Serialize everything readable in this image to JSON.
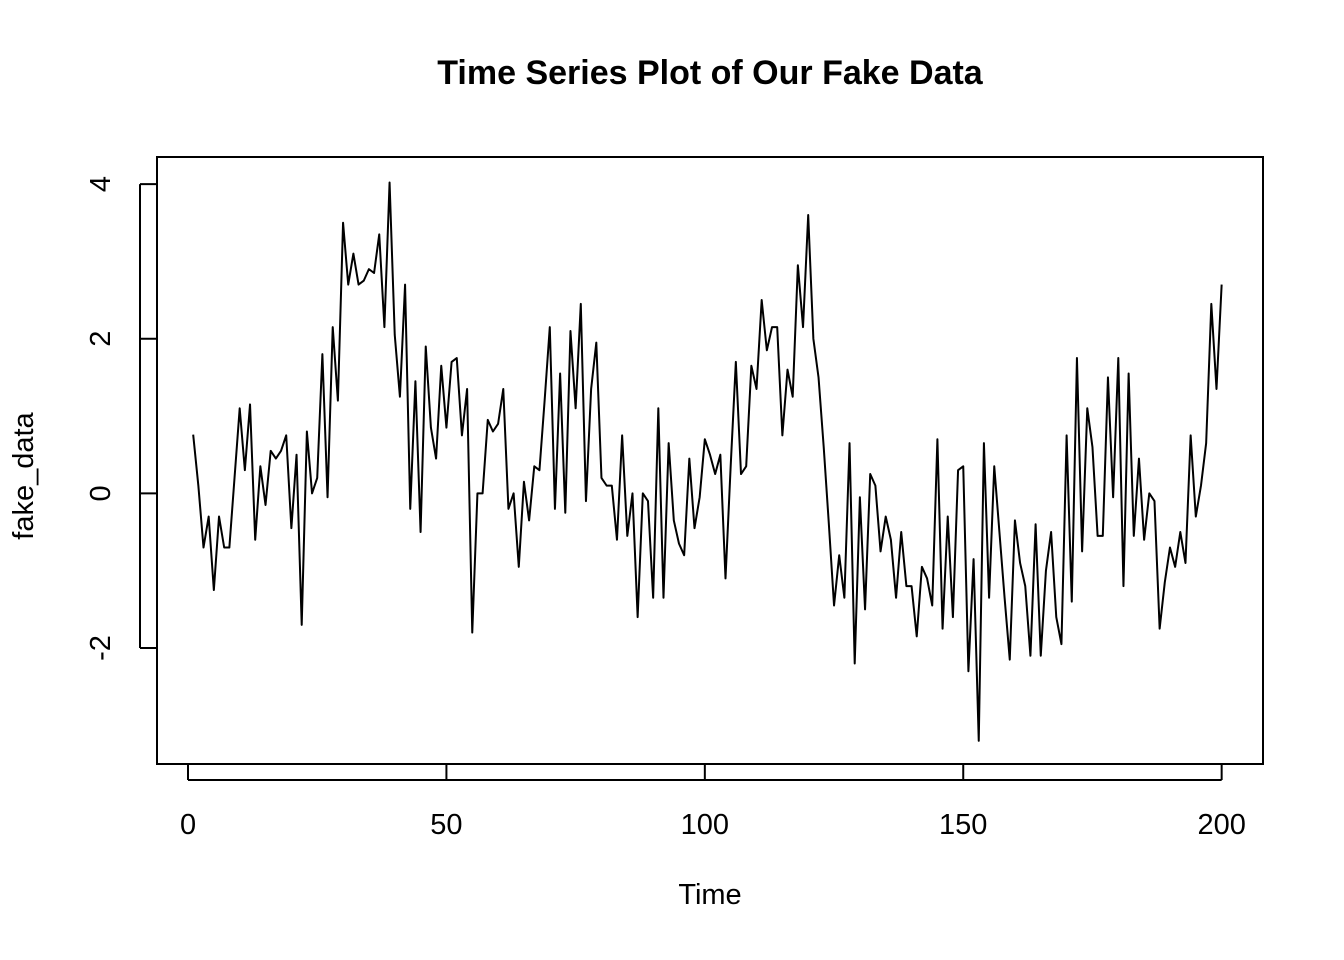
{
  "chart_data": {
    "type": "line",
    "title": "Time Series Plot of Our Fake Data",
    "xlabel": "Time",
    "ylabel": "fake_data",
    "xlim": [
      -6,
      208
    ],
    "ylim": [
      -3.5,
      4.35
    ],
    "x_ticks": [
      0,
      50,
      100,
      150,
      200
    ],
    "x_tick_labels": [
      "0",
      "50",
      "100",
      "150",
      "200"
    ],
    "y_ticks": [
      -2,
      0,
      2,
      4
    ],
    "y_tick_labels": [
      "-2",
      "0",
      "2",
      "4"
    ],
    "grid": false,
    "legend": "none",
    "line_color": "#000000",
    "series": [
      {
        "x": [
          1,
          2,
          3,
          4,
          5,
          6,
          7,
          8,
          9,
          10,
          11,
          12,
          13,
          14,
          15,
          16,
          17,
          18,
          19,
          20,
          21,
          22,
          23,
          24,
          25,
          26,
          27,
          28,
          29,
          30,
          31,
          32,
          33,
          34,
          35,
          36,
          37,
          38,
          39,
          40,
          41,
          42,
          43,
          44,
          45,
          46,
          47,
          48,
          49,
          50,
          51,
          52,
          53,
          54,
          55,
          56,
          57,
          58,
          59,
          60,
          61,
          62,
          63,
          64,
          65,
          66,
          67,
          68,
          69,
          70,
          71,
          72,
          73,
          74,
          75,
          76,
          77,
          78,
          79,
          80,
          81,
          82,
          83,
          84,
          85,
          86,
          87,
          88,
          89,
          90,
          91,
          92,
          93,
          94,
          95,
          96,
          97,
          98,
          99,
          100,
          101,
          102,
          103,
          104,
          105,
          106,
          107,
          108,
          109,
          110,
          111,
          112,
          113,
          114,
          115,
          116,
          117,
          118,
          119,
          120,
          121,
          122,
          123,
          124,
          125,
          126,
          127,
          128,
          129,
          130,
          131,
          132,
          133,
          134,
          135,
          136,
          137,
          138,
          139,
          140,
          141,
          142,
          143,
          144,
          145,
          146,
          147,
          148,
          149,
          150,
          151,
          152,
          153,
          154,
          155,
          156,
          157,
          158,
          159,
          160,
          161,
          162,
          163,
          164,
          165,
          166,
          167,
          168,
          169,
          170,
          171,
          172,
          173,
          174,
          175,
          176,
          177,
          178,
          179,
          180,
          181,
          182,
          183,
          184,
          185,
          186,
          187,
          188,
          189,
          190,
          191,
          192,
          193,
          194,
          195,
          196,
          197,
          198,
          199,
          200
        ],
        "values": [
          0.76,
          0.1,
          -0.7,
          -0.3,
          -1.25,
          -0.3,
          -0.7,
          -0.7,
          0.2,
          1.1,
          0.3,
          1.15,
          -0.6,
          0.35,
          -0.15,
          0.55,
          0.45,
          0.55,
          0.75,
          -0.45,
          0.5,
          -1.7,
          0.8,
          0.0,
          0.2,
          1.8,
          -0.05,
          2.15,
          1.2,
          3.5,
          2.7,
          3.1,
          2.7,
          2.75,
          2.9,
          2.85,
          3.35,
          2.15,
          4.02,
          2.05,
          1.25,
          2.7,
          -0.2,
          1.45,
          -0.5,
          1.9,
          0.85,
          0.45,
          1.65,
          0.85,
          1.7,
          1.75,
          0.75,
          1.35,
          -1.8,
          0.0,
          0.0,
          0.95,
          0.8,
          0.9,
          1.35,
          -0.2,
          0.0,
          -0.95,
          0.15,
          -0.35,
          0.35,
          0.3,
          1.2,
          2.15,
          -0.2,
          1.55,
          -0.25,
          2.1,
          1.1,
          2.45,
          -0.1,
          1.35,
          1.95,
          0.2,
          0.1,
          0.1,
          -0.6,
          0.75,
          -0.55,
          0.0,
          -1.6,
          0.0,
          -0.1,
          -1.35,
          1.1,
          -1.35,
          0.65,
          -0.35,
          -0.65,
          -0.8,
          0.45,
          -0.45,
          -0.05,
          0.7,
          0.5,
          0.25,
          0.5,
          -1.1,
          0.35,
          1.7,
          0.25,
          0.35,
          1.65,
          1.35,
          2.5,
          1.85,
          2.15,
          2.15,
          0.75,
          1.6,
          1.25,
          2.95,
          2.15,
          3.6,
          2.0,
          1.5,
          0.6,
          -0.4,
          -1.45,
          -0.8,
          -1.35,
          0.65,
          -2.2,
          -0.05,
          -1.5,
          0.25,
          0.1,
          -0.75,
          -0.3,
          -0.6,
          -1.35,
          -0.5,
          -1.2,
          -1.2,
          -1.85,
          -0.95,
          -1.1,
          -1.45,
          0.7,
          -1.75,
          -0.3,
          -1.6,
          0.3,
          0.35,
          -2.3,
          -0.85,
          -3.2,
          0.65,
          -1.35,
          0.35,
          -0.5,
          -1.35,
          -2.15,
          -0.35,
          -0.9,
          -1.2,
          -2.1,
          -0.4,
          -2.1,
          -1.0,
          -0.5,
          -1.6,
          -1.95,
          0.75,
          -1.4,
          1.75,
          -0.75,
          1.1,
          0.6,
          -0.55,
          -0.55,
          1.5,
          -0.05,
          1.75,
          -1.2,
          1.55,
          -0.55,
          0.45,
          -0.6,
          0.0,
          -0.1,
          -1.75,
          -1.15,
          -0.7,
          -0.95,
          -0.5,
          -0.9,
          0.75,
          -0.3,
          0.1,
          0.65,
          2.45,
          1.35,
          2.7
        ]
      }
    ]
  }
}
